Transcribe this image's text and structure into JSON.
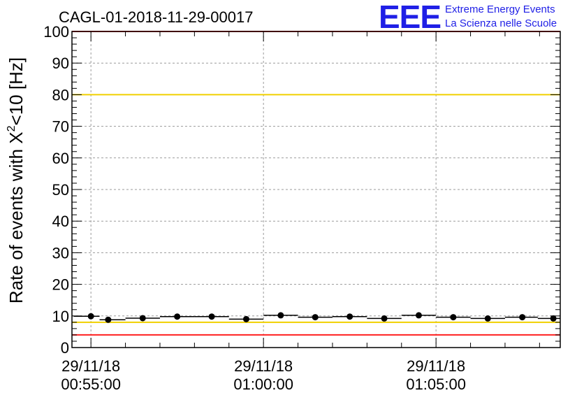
{
  "chart_data": {
    "type": "scatter",
    "title": "CAGL-01-2018-11-29-00017",
    "ylabel": {
      "prefix": "Rate of events with ",
      "chi": "X",
      "sup": "2",
      "suffix": "<10 [Hz]"
    },
    "xlabel": "",
    "ylim": [
      0,
      100
    ],
    "y_ticks": [
      0,
      10,
      20,
      30,
      40,
      50,
      60,
      70,
      80,
      90,
      100
    ],
    "x_unit": "minutes",
    "xlim": [
      54.45,
      68.6
    ],
    "x_ticks": [
      {
        "value": 55,
        "date": "29/11/18",
        "time": "00:55:00"
      },
      {
        "value": 60,
        "date": "29/11/18",
        "time": "01:00:00"
      },
      {
        "value": 65,
        "date": "29/11/18",
        "time": "01:05:00"
      }
    ],
    "grid": true,
    "reference_lines": [
      {
        "y": 80,
        "color": "#f0d000"
      },
      {
        "y": 8,
        "color": "#f0d000"
      },
      {
        "y": 4,
        "color": "#ff2020"
      },
      {
        "y": 100,
        "color": "#ff2020"
      }
    ],
    "points": [
      {
        "x": 55.0,
        "y": 9.9
      },
      {
        "x": 55.5,
        "y": 8.8
      },
      {
        "x": 56.5,
        "y": 9.3
      },
      {
        "x": 57.5,
        "y": 9.8
      },
      {
        "x": 58.5,
        "y": 9.8
      },
      {
        "x": 59.5,
        "y": 9.0
      },
      {
        "x": 60.5,
        "y": 10.2
      },
      {
        "x": 61.5,
        "y": 9.6
      },
      {
        "x": 62.5,
        "y": 9.8
      },
      {
        "x": 63.5,
        "y": 9.2
      },
      {
        "x": 64.5,
        "y": 10.2
      },
      {
        "x": 65.5,
        "y": 9.6
      },
      {
        "x": 66.5,
        "y": 9.2
      },
      {
        "x": 67.5,
        "y": 9.6
      },
      {
        "x": 68.4,
        "y": 9.2
      }
    ],
    "point_color": "#000000"
  },
  "logo": {
    "letters": "EEE",
    "line1": "Extreme Energy Events",
    "line2": "La Scienza nelle Scuole",
    "color": "#1f1fe6"
  }
}
